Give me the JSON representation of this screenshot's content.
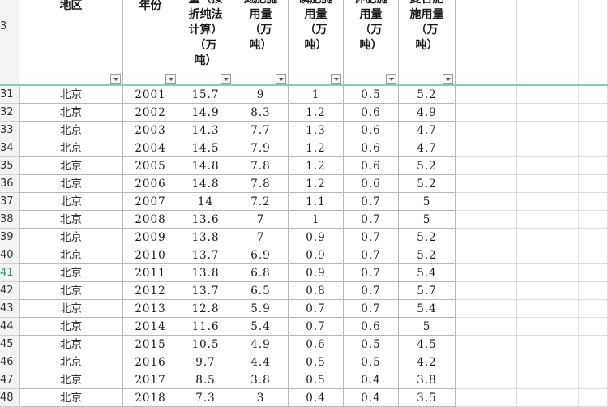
{
  "header_row_number": "3",
  "columns": [
    {
      "id": "region",
      "lines": [
        "地区"
      ]
    },
    {
      "id": "year",
      "lines": [
        "年份"
      ]
    },
    {
      "id": "total",
      "lines": [
        "量（按",
        "折纯法",
        "计算）",
        "（万",
        "吨）"
      ]
    },
    {
      "id": "nitrogen",
      "lines": [
        "氮肥施",
        "用量",
        "（万",
        "吨）"
      ]
    },
    {
      "id": "phosphate",
      "lines": [
        "磷肥施",
        "用量",
        "（万",
        "吨）"
      ]
    },
    {
      "id": "potash",
      "lines": [
        "钾肥施",
        "用量",
        "（万",
        "吨）"
      ]
    },
    {
      "id": "compound",
      "lines": [
        "复合肥",
        "施用量",
        "（万",
        "吨）"
      ]
    }
  ],
  "rows": [
    {
      "n": "31",
      "region": "北京",
      "year": "2001",
      "total": "15.7",
      "nitrogen": "9",
      "phosphate": "1",
      "potash": "0.5",
      "compound": "5.2"
    },
    {
      "n": "32",
      "region": "北京",
      "year": "2002",
      "total": "14.9",
      "nitrogen": "8.3",
      "phosphate": "1.2",
      "potash": "0.6",
      "compound": "4.9"
    },
    {
      "n": "33",
      "region": "北京",
      "year": "2003",
      "total": "14.3",
      "nitrogen": "7.7",
      "phosphate": "1.3",
      "potash": "0.6",
      "compound": "4.7"
    },
    {
      "n": "34",
      "region": "北京",
      "year": "2004",
      "total": "14.5",
      "nitrogen": "7.9",
      "phosphate": "1.2",
      "potash": "0.6",
      "compound": "4.7"
    },
    {
      "n": "35",
      "region": "北京",
      "year": "2005",
      "total": "14.8",
      "nitrogen": "7.8",
      "phosphate": "1.2",
      "potash": "0.6",
      "compound": "5.2"
    },
    {
      "n": "36",
      "region": "北京",
      "year": "2006",
      "total": "14.8",
      "nitrogen": "7.8",
      "phosphate": "1.2",
      "potash": "0.6",
      "compound": "5.2"
    },
    {
      "n": "37",
      "region": "北京",
      "year": "2007",
      "total": "14",
      "nitrogen": "7.2",
      "phosphate": "1.1",
      "potash": "0.7",
      "compound": "5"
    },
    {
      "n": "38",
      "region": "北京",
      "year": "2008",
      "total": "13.6",
      "nitrogen": "7",
      "phosphate": "1",
      "potash": "0.7",
      "compound": "5"
    },
    {
      "n": "39",
      "region": "北京",
      "year": "2009",
      "total": "13.8",
      "nitrogen": "7",
      "phosphate": "0.9",
      "potash": "0.7",
      "compound": "5.2"
    },
    {
      "n": "40",
      "region": "北京",
      "year": "2010",
      "total": "13.7",
      "nitrogen": "6.9",
      "phosphate": "0.9",
      "potash": "0.7",
      "compound": "5.2"
    },
    {
      "n": "41",
      "region": "北京",
      "year": "2011",
      "total": "13.8",
      "nitrogen": "6.8",
      "phosphate": "0.9",
      "potash": "0.7",
      "compound": "5.4"
    },
    {
      "n": "42",
      "region": "北京",
      "year": "2012",
      "total": "13.7",
      "nitrogen": "6.5",
      "phosphate": "0.8",
      "potash": "0.7",
      "compound": "5.7"
    },
    {
      "n": "43",
      "region": "北京",
      "year": "2013",
      "total": "12.8",
      "nitrogen": "5.9",
      "phosphate": "0.7",
      "potash": "0.7",
      "compound": "5.4"
    },
    {
      "n": "44",
      "region": "北京",
      "year": "2014",
      "total": "11.6",
      "nitrogen": "5.4",
      "phosphate": "0.7",
      "potash": "0.6",
      "compound": "5"
    },
    {
      "n": "45",
      "region": "北京",
      "year": "2015",
      "total": "10.5",
      "nitrogen": "4.9",
      "phosphate": "0.6",
      "potash": "0.5",
      "compound": "4.5"
    },
    {
      "n": "46",
      "region": "北京",
      "year": "2016",
      "total": "9.7",
      "nitrogen": "4.4",
      "phosphate": "0.5",
      "potash": "0.5",
      "compound": "4.2"
    },
    {
      "n": "47",
      "region": "北京",
      "year": "2017",
      "total": "8.5",
      "nitrogen": "3.8",
      "phosphate": "0.5",
      "potash": "0.4",
      "compound": "3.8"
    },
    {
      "n": "48",
      "region": "北京",
      "year": "2018",
      "total": "7.3",
      "nitrogen": "3",
      "phosphate": "0.4",
      "potash": "0.4",
      "compound": "3.5"
    }
  ],
  "active_row": "41",
  "colors": {
    "freeze_line": "#7fcfb0",
    "active_row_number": "#2e9a6e",
    "grid": "#b8b8b8"
  }
}
